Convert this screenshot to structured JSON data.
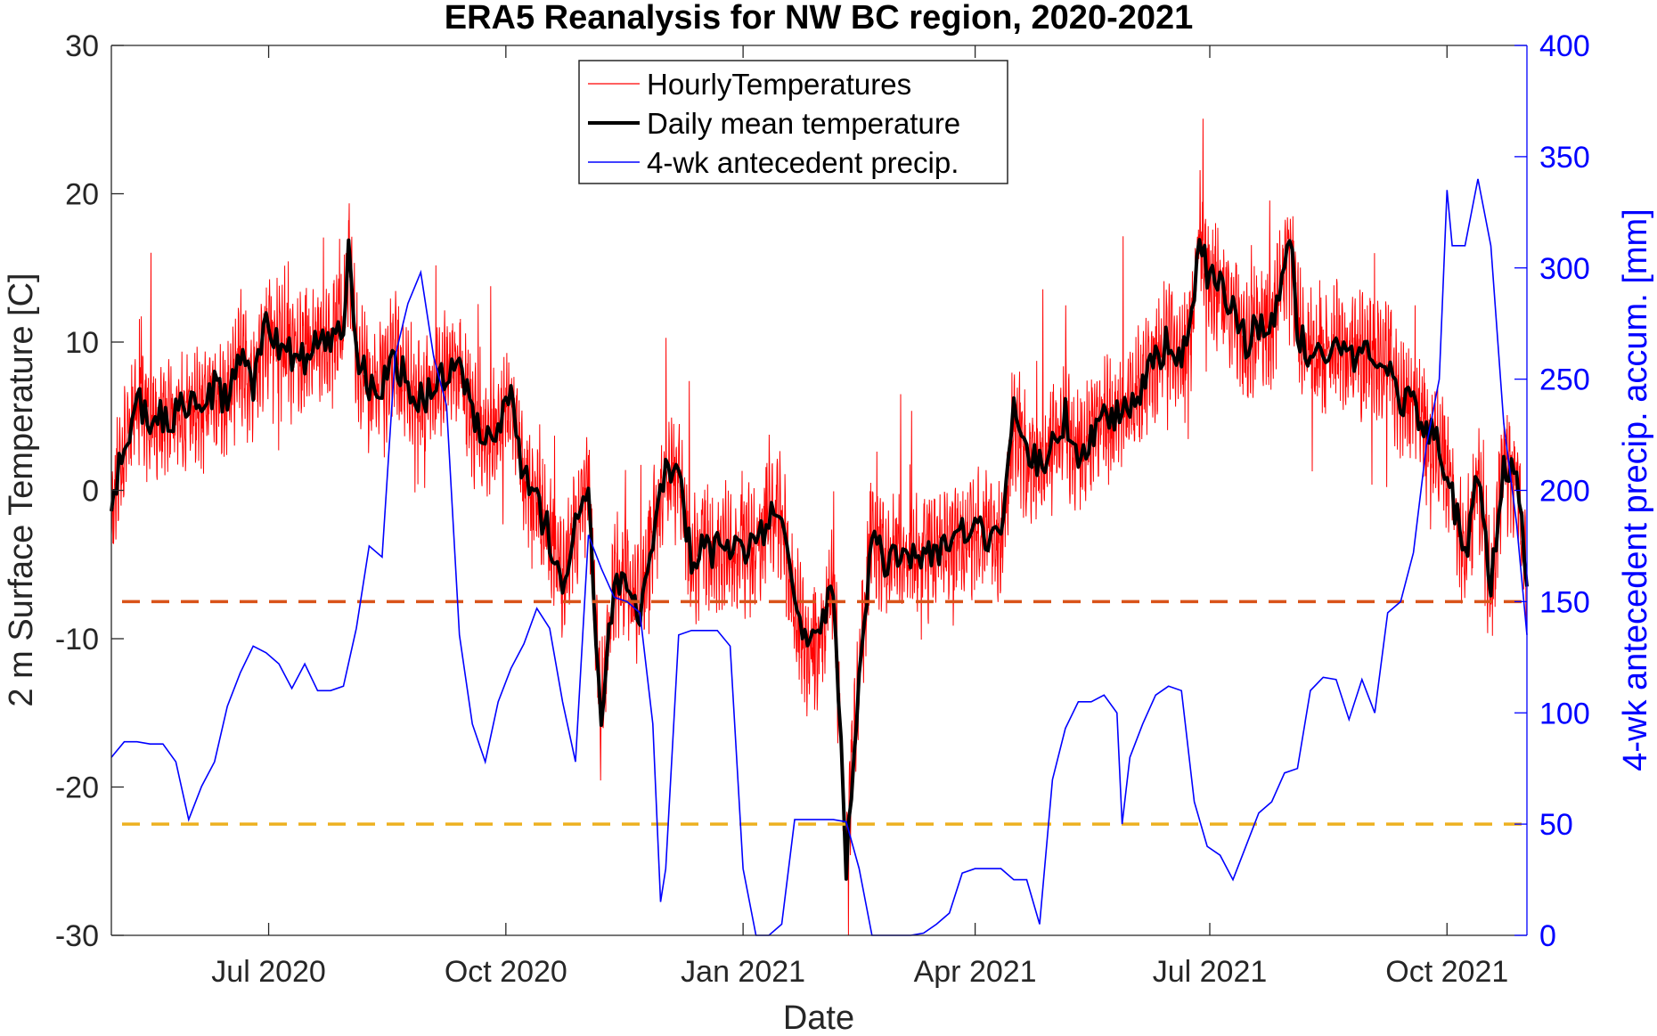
{
  "chart_data": {
    "type": "line",
    "title": "ERA5 Reanalysis for NW BC region, 2020-2021",
    "xlabel": "Date",
    "ylabel_left": "2 m Surface Temperature [C]",
    "ylabel_right": "4-wk antecedent precip. accum. [mm]",
    "xlim": [
      "2020-05-01",
      "2021-11-01"
    ],
    "ylim_left": [
      -30,
      30
    ],
    "ylim_right": [
      0,
      400
    ],
    "x_ticks": [
      {
        "date": "2020-07-01",
        "label": "Jul 2020"
      },
      {
        "date": "2020-10-01",
        "label": "Oct 2020"
      },
      {
        "date": "2021-01-01",
        "label": "Jan 2021"
      },
      {
        "date": "2021-04-01",
        "label": "Apr 2021"
      },
      {
        "date": "2021-07-01",
        "label": "Jul 2021"
      },
      {
        "date": "2021-10-01",
        "label": "Oct 2021"
      }
    ],
    "y_ticks_left": [
      "-30",
      "-20",
      "-10",
      "0",
      "10",
      "20",
      "30"
    ],
    "y_ticks_right": [
      "0",
      "50",
      "100",
      "150",
      "200",
      "250",
      "300",
      "350",
      "400"
    ],
    "grid": false,
    "legend": {
      "placement": "top-center",
      "entries": [
        "HourlyTemperatures",
        "Daily mean temperature",
        "4-wk antecedent precip."
      ]
    },
    "colors": {
      "hourly": "#ff0000",
      "daily": "#000000",
      "precip": "#0000ff",
      "right_axis": "#0000ff",
      "ref_high": "#D95319",
      "ref_low": "#EDB120"
    },
    "reference_lines": [
      {
        "axis": "right",
        "value": 150,
        "left_equiv": -7.5,
        "color": "#D95319",
        "style": "dashed"
      },
      {
        "axis": "right",
        "value": 50,
        "left_equiv": -22.5,
        "color": "#EDB120",
        "style": "dashed"
      }
    ],
    "series": [
      {
        "name": "Daily mean temperature",
        "axis": "left",
        "points": [
          [
            "2020-05-01",
            -1
          ],
          [
            "2020-05-06",
            3
          ],
          [
            "2020-05-11",
            6
          ],
          [
            "2020-05-16",
            5
          ],
          [
            "2020-05-21",
            5
          ],
          [
            "2020-05-26",
            5
          ],
          [
            "2020-05-31",
            6
          ],
          [
            "2020-06-05",
            5
          ],
          [
            "2020-06-10",
            7
          ],
          [
            "2020-06-15",
            6
          ],
          [
            "2020-06-20",
            9
          ],
          [
            "2020-06-25",
            7
          ],
          [
            "2020-06-30",
            11
          ],
          [
            "2020-07-05",
            10
          ],
          [
            "2020-07-10",
            9
          ],
          [
            "2020-07-15",
            9
          ],
          [
            "2020-07-20",
            10
          ],
          [
            "2020-07-25",
            10
          ],
          [
            "2020-07-30",
            11
          ],
          [
            "2020-08-01",
            16
          ],
          [
            "2020-08-04",
            9
          ],
          [
            "2020-08-09",
            7
          ],
          [
            "2020-08-14",
            7
          ],
          [
            "2020-08-19",
            9
          ],
          [
            "2020-08-24",
            7
          ],
          [
            "2020-08-29",
            6
          ],
          [
            "2020-09-03",
            7
          ],
          [
            "2020-09-08",
            8
          ],
          [
            "2020-09-13",
            8
          ],
          [
            "2020-09-18",
            5
          ],
          [
            "2020-09-23",
            3
          ],
          [
            "2020-09-28",
            4
          ],
          [
            "2020-10-03",
            6
          ],
          [
            "2020-10-08",
            1
          ],
          [
            "2020-10-13",
            -1
          ],
          [
            "2020-10-18",
            -3
          ],
          [
            "2020-10-23",
            -6
          ],
          [
            "2020-10-28",
            -2
          ],
          [
            "2020-11-02",
            0
          ],
          [
            "2020-11-07",
            -16
          ],
          [
            "2020-11-12",
            -6
          ],
          [
            "2020-11-17",
            -6
          ],
          [
            "2020-11-22",
            -8
          ],
          [
            "2020-11-27",
            -3
          ],
          [
            "2020-12-02",
            1
          ],
          [
            "2020-12-07",
            1
          ],
          [
            "2020-12-12",
            -5
          ],
          [
            "2020-12-17",
            -4
          ],
          [
            "2020-12-22",
            -4
          ],
          [
            "2020-12-27",
            -4
          ],
          [
            "2021-01-01",
            -4
          ],
          [
            "2021-01-06",
            -4
          ],
          [
            "2021-01-11",
            -2
          ],
          [
            "2021-01-16",
            -2
          ],
          [
            "2021-01-21",
            -8
          ],
          [
            "2021-01-26",
            -11
          ],
          [
            "2021-01-31",
            -10
          ],
          [
            "2021-02-05",
            -6
          ],
          [
            "2021-02-10",
            -25
          ],
          [
            "2021-02-15",
            -12
          ],
          [
            "2021-02-20",
            -3
          ],
          [
            "2021-02-25",
            -5
          ],
          [
            "2021-03-02",
            -4
          ],
          [
            "2021-03-07",
            -5
          ],
          [
            "2021-03-12",
            -4
          ],
          [
            "2021-03-17",
            -4
          ],
          [
            "2021-03-22",
            -4
          ],
          [
            "2021-03-27",
            -3
          ],
          [
            "2021-04-01",
            -3
          ],
          [
            "2021-04-06",
            -3
          ],
          [
            "2021-04-11",
            -4
          ],
          [
            "2021-04-16",
            5
          ],
          [
            "2021-04-21",
            2
          ],
          [
            "2021-04-26",
            2
          ],
          [
            "2021-05-01",
            3
          ],
          [
            "2021-05-06",
            5
          ],
          [
            "2021-05-11",
            2
          ],
          [
            "2021-05-16",
            4
          ],
          [
            "2021-05-21",
            5
          ],
          [
            "2021-05-26",
            5
          ],
          [
            "2021-05-31",
            6
          ],
          [
            "2021-06-05",
            7
          ],
          [
            "2021-06-10",
            9
          ],
          [
            "2021-06-15",
            10
          ],
          [
            "2021-06-20",
            9
          ],
          [
            "2021-06-25",
            12
          ],
          [
            "2021-06-27",
            18
          ],
          [
            "2021-06-30",
            14
          ],
          [
            "2021-07-05",
            14
          ],
          [
            "2021-07-10",
            12
          ],
          [
            "2021-07-15",
            10
          ],
          [
            "2021-07-20",
            11
          ],
          [
            "2021-07-25",
            11
          ],
          [
            "2021-07-30",
            15
          ],
          [
            "2021-08-01",
            17
          ],
          [
            "2021-08-04",
            11
          ],
          [
            "2021-08-09",
            9
          ],
          [
            "2021-08-14",
            9
          ],
          [
            "2021-08-19",
            10
          ],
          [
            "2021-08-24",
            9
          ],
          [
            "2021-08-29",
            9
          ],
          [
            "2021-09-03",
            9
          ],
          [
            "2021-09-08",
            9
          ],
          [
            "2021-09-13",
            6
          ],
          [
            "2021-09-18",
            6
          ],
          [
            "2021-09-23",
            4
          ],
          [
            "2021-09-28",
            3
          ],
          [
            "2021-10-03",
            0
          ],
          [
            "2021-10-08",
            -5
          ],
          [
            "2021-10-13",
            1
          ],
          [
            "2021-10-18",
            -7
          ],
          [
            "2021-10-23",
            2
          ],
          [
            "2021-10-28",
            1
          ],
          [
            "2021-11-01",
            -6
          ]
        ]
      },
      {
        "name": "4-wk antecedent precip.",
        "axis": "right",
        "points": [
          [
            "2020-05-01",
            80
          ],
          [
            "2020-05-06",
            87
          ],
          [
            "2020-05-11",
            87
          ],
          [
            "2020-05-16",
            86
          ],
          [
            "2020-05-21",
            86
          ],
          [
            "2020-05-26",
            78
          ],
          [
            "2020-05-31",
            52
          ],
          [
            "2020-06-05",
            67
          ],
          [
            "2020-06-10",
            78
          ],
          [
            "2020-06-15",
            103
          ],
          [
            "2020-06-20",
            118
          ],
          [
            "2020-06-25",
            130
          ],
          [
            "2020-06-30",
            127
          ],
          [
            "2020-07-05",
            122
          ],
          [
            "2020-07-10",
            111
          ],
          [
            "2020-07-15",
            122
          ],
          [
            "2020-07-20",
            110
          ],
          [
            "2020-07-25",
            110
          ],
          [
            "2020-07-30",
            112
          ],
          [
            "2020-08-04",
            138
          ],
          [
            "2020-08-09",
            175
          ],
          [
            "2020-08-14",
            170
          ],
          [
            "2020-08-19",
            260
          ],
          [
            "2020-08-24",
            284
          ],
          [
            "2020-08-29",
            298
          ],
          [
            "2020-09-03",
            260
          ],
          [
            "2020-09-08",
            238
          ],
          [
            "2020-09-13",
            135
          ],
          [
            "2020-09-18",
            95
          ],
          [
            "2020-09-23",
            78
          ],
          [
            "2020-09-28",
            105
          ],
          [
            "2020-10-03",
            120
          ],
          [
            "2020-10-08",
            131
          ],
          [
            "2020-10-13",
            147
          ],
          [
            "2020-10-18",
            138
          ],
          [
            "2020-10-23",
            105
          ],
          [
            "2020-10-28",
            78
          ],
          [
            "2020-11-02",
            180
          ],
          [
            "2020-11-07",
            165
          ],
          [
            "2020-11-12",
            152
          ],
          [
            "2020-11-17",
            150
          ],
          [
            "2020-11-22",
            145
          ],
          [
            "2020-11-27",
            95
          ],
          [
            "2020-11-30",
            15
          ],
          [
            "2020-12-02",
            30
          ],
          [
            "2020-12-07",
            135
          ],
          [
            "2020-12-12",
            137
          ],
          [
            "2020-12-17",
            137
          ],
          [
            "2020-12-22",
            137
          ],
          [
            "2020-12-27",
            130
          ],
          [
            "2021-01-01",
            30
          ],
          [
            "2021-01-06",
            0
          ],
          [
            "2021-01-11",
            0
          ],
          [
            "2021-01-16",
            5
          ],
          [
            "2021-01-21",
            52
          ],
          [
            "2021-01-26",
            52
          ],
          [
            "2021-01-31",
            52
          ],
          [
            "2021-02-05",
            52
          ],
          [
            "2021-02-10",
            51
          ],
          [
            "2021-02-15",
            30
          ],
          [
            "2021-02-20",
            0
          ],
          [
            "2021-02-25",
            0
          ],
          [
            "2021-03-02",
            0
          ],
          [
            "2021-03-07",
            0
          ],
          [
            "2021-03-12",
            1
          ],
          [
            "2021-03-17",
            5
          ],
          [
            "2021-03-22",
            10
          ],
          [
            "2021-03-27",
            28
          ],
          [
            "2021-04-01",
            30
          ],
          [
            "2021-04-06",
            30
          ],
          [
            "2021-04-11",
            30
          ],
          [
            "2021-04-16",
            25
          ],
          [
            "2021-04-21",
            25
          ],
          [
            "2021-04-26",
            5
          ],
          [
            "2021-05-01",
            70
          ],
          [
            "2021-05-06",
            93
          ],
          [
            "2021-05-11",
            105
          ],
          [
            "2021-05-16",
            105
          ],
          [
            "2021-05-21",
            108
          ],
          [
            "2021-05-26",
            100
          ],
          [
            "2021-05-28",
            50
          ],
          [
            "2021-05-31",
            80
          ],
          [
            "2021-06-05",
            95
          ],
          [
            "2021-06-10",
            108
          ],
          [
            "2021-06-15",
            112
          ],
          [
            "2021-06-20",
            110
          ],
          [
            "2021-06-25",
            60
          ],
          [
            "2021-06-30",
            40
          ],
          [
            "2021-07-05",
            36
          ],
          [
            "2021-07-10",
            25
          ],
          [
            "2021-07-15",
            40
          ],
          [
            "2021-07-20",
            55
          ],
          [
            "2021-07-25",
            60
          ],
          [
            "2021-07-30",
            73
          ],
          [
            "2021-08-04",
            75
          ],
          [
            "2021-08-09",
            110
          ],
          [
            "2021-08-14",
            116
          ],
          [
            "2021-08-19",
            115
          ],
          [
            "2021-08-24",
            97
          ],
          [
            "2021-08-29",
            115
          ],
          [
            "2021-09-03",
            100
          ],
          [
            "2021-09-08",
            145
          ],
          [
            "2021-09-13",
            150
          ],
          [
            "2021-09-18",
            172
          ],
          [
            "2021-09-23",
            220
          ],
          [
            "2021-09-28",
            250
          ],
          [
            "2021-10-01",
            335
          ],
          [
            "2021-10-03",
            310
          ],
          [
            "2021-10-08",
            310
          ],
          [
            "2021-10-13",
            340
          ],
          [
            "2021-10-18",
            310
          ],
          [
            "2021-10-23",
            230
          ],
          [
            "2021-10-28",
            185
          ],
          [
            "2021-11-01",
            135
          ]
        ]
      },
      {
        "name": "HourlyTemperatures",
        "axis": "left",
        "description_of_values": "hourly values fluctuate around the daily mean (typically ±4 C, occasional spikes up to ±8 C)"
      }
    ]
  }
}
